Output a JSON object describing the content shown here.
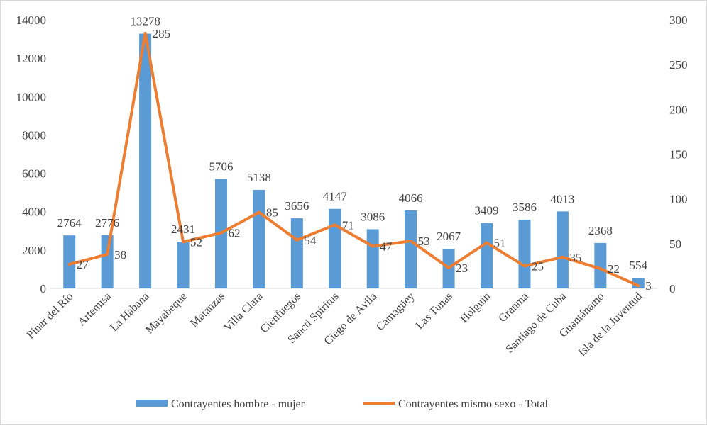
{
  "chart_data": {
    "type": "bar",
    "title": "",
    "categories": [
      "Pinar del Río",
      "Artemisa",
      "La Habana",
      "Mayabeque",
      "Matanzas",
      "Villa Clara",
      "Cienfuegos",
      "Sancti Spíritus",
      "Ciego de Ávila",
      "Camagüey",
      "Las Tunas",
      "Holguín",
      "Granma",
      "Santiago de Cuba",
      "Guantánamo",
      "Isla de la Juventud"
    ],
    "series": [
      {
        "name": "Contrayentes hombre - mujer",
        "type": "bar",
        "axis": "left",
        "color": "#5b9bd5",
        "values": [
          2764,
          2776,
          13278,
          2431,
          5706,
          5138,
          3656,
          4147,
          3086,
          4066,
          2067,
          3409,
          3586,
          4013,
          2368,
          554
        ]
      },
      {
        "name": "Contrayentes mismo sexo - Total",
        "type": "line",
        "axis": "right",
        "color": "#ed7d31",
        "values": [
          27,
          38,
          285,
          52,
          62,
          85,
          54,
          71,
          47,
          53,
          23,
          51,
          25,
          35,
          22,
          3
        ]
      }
    ],
    "y_left": {
      "min": 0,
      "max": 14000,
      "step": 2000,
      "ticks": [
        "0",
        "2000",
        "4000",
        "6000",
        "8000",
        "10000",
        "12000",
        "14000"
      ]
    },
    "y_right": {
      "min": 0,
      "max": 300,
      "step": 50,
      "ticks": [
        "0",
        "50",
        "100",
        "150",
        "200",
        "250",
        "300"
      ]
    },
    "grid": false,
    "legend": "bottom"
  }
}
